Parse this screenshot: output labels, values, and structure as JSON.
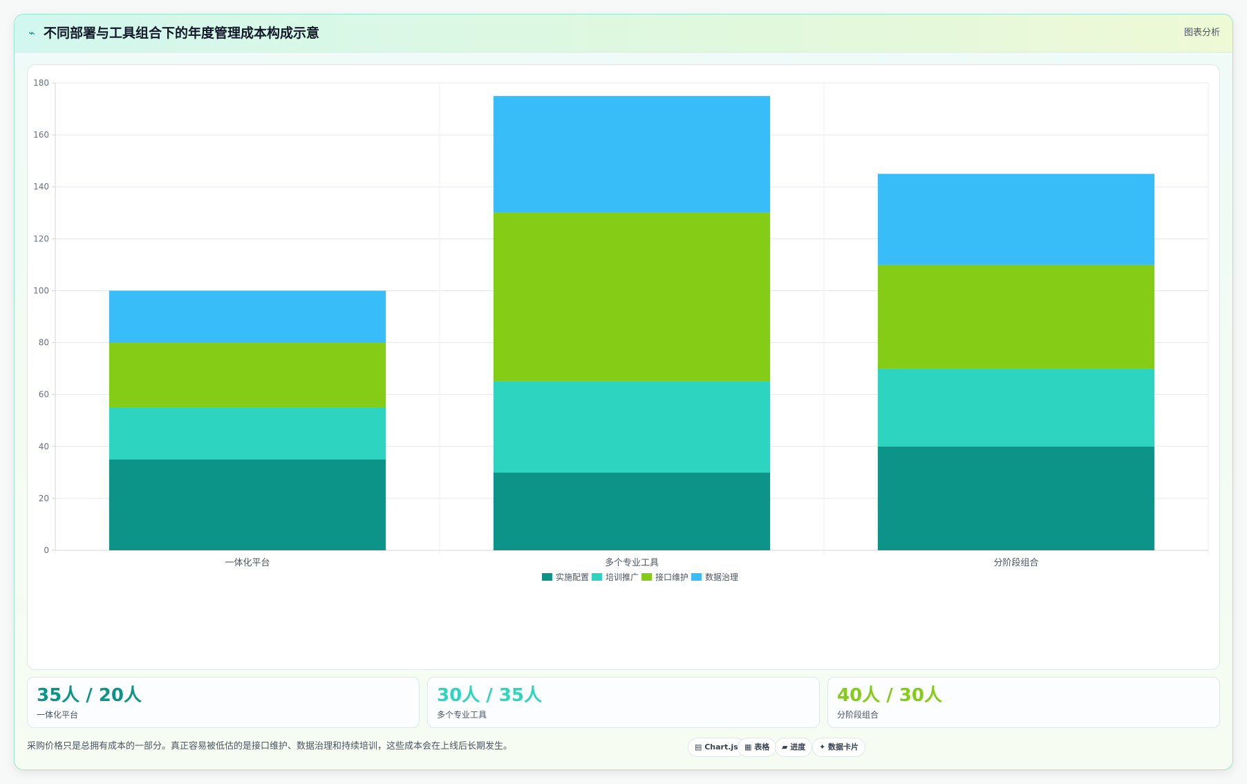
{
  "header": {
    "icon": "trend-arrow-icon",
    "icon_glyph": "⌁",
    "title": "不同部署与工具组合下的年度管理成本构成示意",
    "action_label": "图表分析"
  },
  "chart_data": {
    "type": "bar",
    "stacked": true,
    "categories": [
      "一体化平台",
      "多个专业工具",
      "分阶段组合"
    ],
    "series": [
      {
        "name": "实施配置",
        "color": "#0d9488",
        "values": [
          35,
          30,
          40
        ]
      },
      {
        "name": "培训推广",
        "color": "#2dd4bf",
        "values": [
          20,
          35,
          30
        ]
      },
      {
        "name": "接口维护",
        "color": "#84cc16",
        "values": [
          25,
          65,
          40
        ]
      },
      {
        "name": "数据治理",
        "color": "#38bdf8",
        "values": [
          20,
          45,
          35
        ]
      }
    ],
    "ylim": [
      0,
      180
    ],
    "yticks": [
      0,
      20,
      40,
      60,
      80,
      100,
      120,
      140,
      160,
      180
    ],
    "grid": true,
    "legend_position": "bottom-center"
  },
  "stats": [
    {
      "value": "35人 / 20人",
      "label": "一体化平台",
      "color": "#0d9488"
    },
    {
      "value": "30人 / 35人",
      "label": "多个专业工具",
      "color": "#2dd4bf"
    },
    {
      "value": "40人 / 30人",
      "label": "分阶段组合",
      "color": "#84cc16"
    }
  ],
  "footnote": "采购价格只是总拥有成本的一部分。真正容易被低估的是接口维护、数据治理和持续培训，这些成本会在上线后长期发生。",
  "pills": [
    {
      "icon": "chart-icon",
      "label": "▤ Chart.js"
    },
    {
      "icon": "table-icon",
      "label": "▦ 表格"
    },
    {
      "icon": "progress-icon",
      "label": "▰ 进度"
    },
    {
      "icon": "data-card-icon",
      "label": "✦ 数据卡片"
    }
  ]
}
